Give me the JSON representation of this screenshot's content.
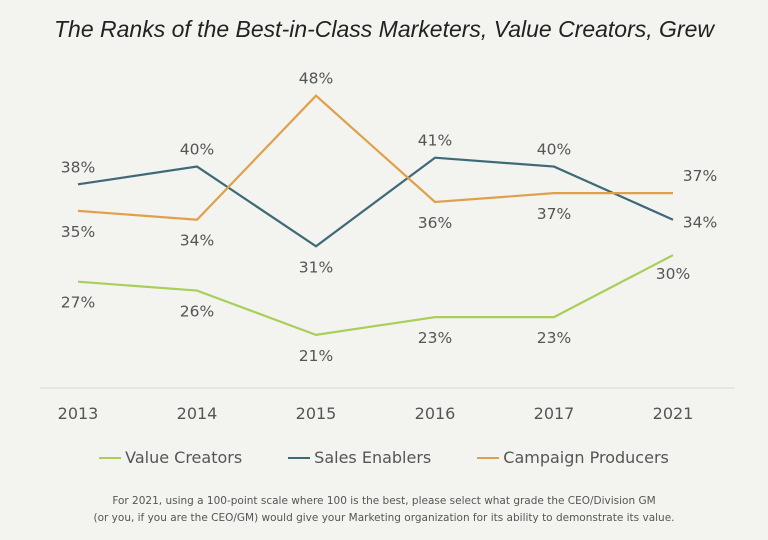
{
  "chart_data": {
    "type": "line",
    "title": "The Ranks of the Best-in-Class Marketers, Value Creators, Grew",
    "categories": [
      "2013",
      "2014",
      "2015",
      "2016",
      "2017",
      "2021"
    ],
    "ylim": [
      15,
      50
    ],
    "grid": false,
    "legend_placement": "bottom",
    "series": [
      {
        "name": "Value Creators",
        "color": "#a8cf5a",
        "values": [
          27,
          26,
          21,
          23,
          23,
          30
        ],
        "labels": [
          "27%",
          "26%",
          "21%",
          "23%",
          "23%",
          "30%"
        ]
      },
      {
        "name": "Sales Enablers",
        "color": "#3e6a78",
        "values": [
          38,
          40,
          31,
          41,
          40,
          34
        ],
        "labels": [
          "38%",
          "40%",
          "31%",
          "41%",
          "40%",
          "34%"
        ]
      },
      {
        "name": "Campaign Producers",
        "color": "#e0a04a",
        "values": [
          35,
          34,
          48,
          36,
          37,
          37
        ],
        "labels": [
          "35%",
          "34%",
          "48%",
          "36%",
          "37%",
          "37%"
        ]
      }
    ],
    "footnote": [
      "For 2021, using a 100-point scale where 100 is the best, please select what grade the CEO/Division GM",
      "(or you, if you are the CEO/GM) would give your Marketing organization for its ability to demonstrate its value."
    ]
  }
}
